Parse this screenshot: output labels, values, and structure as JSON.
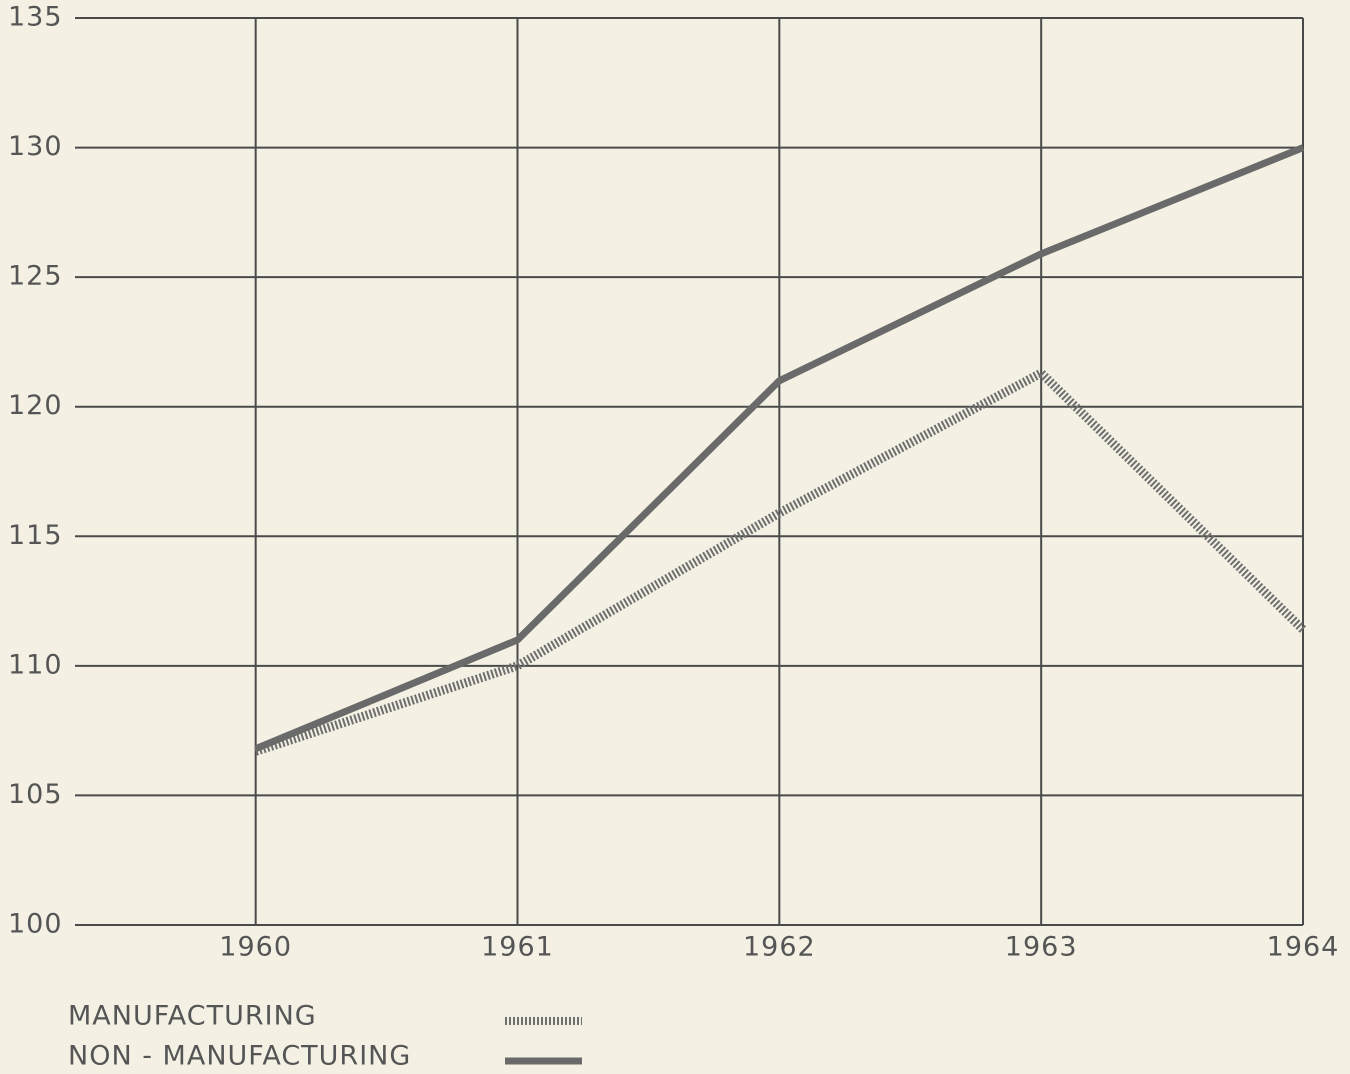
{
  "chart_data": {
    "type": "line",
    "x": [
      1960,
      1961,
      1962,
      1963,
      1964
    ],
    "series": [
      {
        "name": "MANUFACTURING",
        "color": "#6e6e6e",
        "style": "dotted",
        "values": [
          106.7,
          110,
          115.9,
          121.3,
          111.4
        ]
      },
      {
        "name": "NON - MANUFACTURING",
        "color": "#6a6a6a",
        "style": "solid",
        "values": [
          106.8,
          111,
          121,
          125.9,
          130
        ]
      }
    ],
    "xlim": [
      1959.31,
      1964
    ],
    "xticks": [
      1960,
      1961,
      1962,
      1963,
      1964
    ],
    "ylim": [
      100,
      135
    ],
    "yticks": [
      100,
      105,
      110,
      115,
      120,
      125,
      130,
      135
    ],
    "grid": true,
    "legend": "bottom-left"
  }
}
